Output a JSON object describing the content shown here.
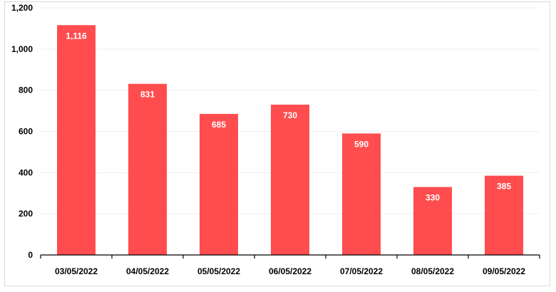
{
  "chart_data": {
    "type": "bar",
    "title": "",
    "xlabel": "",
    "ylabel": "",
    "categories": [
      "03/05/2022",
      "04/05/2022",
      "05/05/2022",
      "06/05/2022",
      "07/05/2022",
      "08/05/2022",
      "09/05/2022"
    ],
    "values": [
      1116,
      831,
      685,
      730,
      590,
      330,
      385
    ],
    "data_labels": [
      "1,116",
      "831",
      "685",
      "730",
      "590",
      "330",
      "385"
    ],
    "ylim": [
      0,
      1200
    ],
    "y_ticks": [
      0,
      200,
      400,
      600,
      800,
      1000,
      1200
    ],
    "y_tick_labels": [
      "0",
      "200",
      "400",
      "600",
      "800",
      "1,000",
      "1,200"
    ],
    "grid": true,
    "legend": "none",
    "colors": {
      "bar": "#ff4d4f",
      "grid": "#efefef",
      "axis": "#000000",
      "data_label": "#ffffff"
    }
  }
}
